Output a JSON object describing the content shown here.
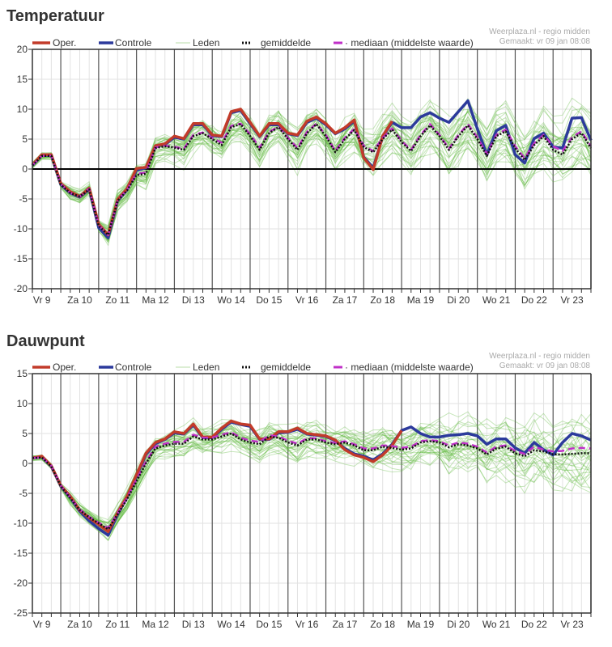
{
  "charts_meta": {
    "credit_line1": "Weerplaza.nl - regio midden",
    "credit_line2": "Gemaakt: vr 09 jan 08:08",
    "legend": {
      "oper": "Oper.",
      "controle": "Controle",
      "leden": "Leden",
      "gemiddelde": "gemiddelde",
      "mediaan": "mediaan (middelste waarde)"
    },
    "colors": {
      "oper": "#c23b2a",
      "controle": "#2c3a9c",
      "leden": "#5cb83a",
      "gemiddelde": "#111111",
      "mediaan": "#c030c8"
    }
  },
  "chart_data": [
    {
      "type": "line",
      "title": "Temperatuur",
      "xlabel": "",
      "ylabel": "",
      "ylim": [
        -20,
        20
      ],
      "yticks": [
        20,
        15,
        10,
        5,
        0,
        -5,
        -10,
        -15,
        -20
      ],
      "zero_line": true,
      "grid": true,
      "steps_per_day": 4,
      "day_labels": [
        "Vr 9",
        "Za 10",
        "Zo 11",
        "Ma 12",
        "Di 13",
        "Wo 14",
        "Do 15",
        "Vr 16",
        "Za 17",
        "Zo 18",
        "Ma 19",
        "Di 20",
        "Wo 21",
        "Do 22",
        "Vr 23"
      ],
      "series": [
        {
          "name": "Oper.",
          "key": "oper",
          "values": [
            0.7,
            2.4,
            2.4,
            -2.4,
            -3.8,
            -4.6,
            -3.2,
            -9.2,
            -11,
            -5.1,
            -3.3,
            0.1,
            0.3,
            3.9,
            4.2,
            5.5,
            5.1,
            7.6,
            7.6,
            5.7,
            5.5,
            9.6,
            10,
            7.8,
            5.5,
            7.6,
            7.6,
            6.0,
            5.7,
            8.0,
            8.7,
            7.6,
            6.0,
            6.9,
            8.2,
            1.9,
            -0.1,
            5.5,
            8.0
          ]
        },
        {
          "name": "Controle",
          "key": "controle",
          "values": [
            0.6,
            2.3,
            2.3,
            -2.6,
            -4.0,
            -4.7,
            -3.4,
            -9.8,
            -11.5,
            -5.3,
            -3.5,
            -0.2,
            0.2,
            3.8,
            4.1,
            5.3,
            5.0,
            7.4,
            7.4,
            5.6,
            5.4,
            9.4,
            9.8,
            7.6,
            5.4,
            7.4,
            7.4,
            5.9,
            5.6,
            7.8,
            8.5,
            7.4,
            5.9,
            6.7,
            8.0,
            2.0,
            0.2,
            5.4,
            7.8,
            6.9,
            6.9,
            8.7,
            9.4,
            8.5,
            7.8,
            9.6,
            11.4,
            6.7,
            2.4,
            6.4,
            7.3,
            2.4,
            1.0,
            5.1,
            6.0,
            3.7,
            3.5,
            8.5,
            8.6,
            4.8
          ]
        },
        {
          "name": "gemiddelde",
          "key": "gemiddelde",
          "values": [
            0.6,
            2.2,
            2.2,
            -2.6,
            -4.0,
            -4.6,
            -3.4,
            -9.5,
            -11,
            -5.3,
            -3.6,
            -1.0,
            -0.8,
            3.5,
            3.8,
            3.6,
            3.2,
            5.5,
            6.0,
            5.0,
            4.0,
            7.0,
            7.5,
            5.5,
            3.2,
            6.0,
            7.0,
            5.0,
            3.2,
            6.0,
            7.5,
            5.5,
            2.8,
            5.0,
            6.5,
            3.7,
            2.8,
            5.0,
            6.6,
            4.5,
            3.0,
            5.5,
            7.3,
            5.5,
            3.2,
            5.5,
            7.3,
            5.0,
            2.2,
            5.5,
            6.3,
            3.5,
            1.5,
            4.0,
            5.5,
            3.2,
            2.4,
            5.0,
            6.0,
            3.5
          ]
        },
        {
          "name": "mediaan (middelste waarde)",
          "key": "mediaan",
          "values": [
            0.6,
            2.2,
            2.2,
            -2.5,
            -4.0,
            -4.6,
            -3.3,
            -9.4,
            -11,
            -5.2,
            -3.5,
            -0.8,
            -0.6,
            3.6,
            3.9,
            3.7,
            3.4,
            5.7,
            6.1,
            5.2,
            4.4,
            7.2,
            7.6,
            5.8,
            3.6,
            6.2,
            7.1,
            5.2,
            3.5,
            6.2,
            7.6,
            5.7,
            3.0,
            5.2,
            6.7,
            3.9,
            3.0,
            5.2,
            6.8,
            4.7,
            3.2,
            5.7,
            7.5,
            5.7,
            3.4,
            5.7,
            7.5,
            5.3,
            2.5,
            5.7,
            6.6,
            3.8,
            1.8,
            4.3,
            5.7,
            3.8,
            3.0,
            5.3,
            6.3,
            3.8
          ]
        },
        {
          "name": "Leden",
          "key": "leden",
          "member_count": 50,
          "spread_per_day": [
            0.5,
            1.0,
            1.5,
            2.0,
            2.2,
            2.5,
            2.7,
            3.0,
            3.0,
            3.2,
            3.5,
            3.8,
            4.2,
            4.5,
            5.0
          ]
        }
      ]
    },
    {
      "type": "line",
      "title": "Dauwpunt",
      "xlabel": "",
      "ylabel": "",
      "ylim": [
        -25,
        15
      ],
      "yticks": [
        15,
        10,
        5,
        0,
        -5,
        -10,
        -15,
        -20,
        -25
      ],
      "zero_line": false,
      "grid": true,
      "steps_per_day": 4,
      "day_labels": [
        "Vr 9",
        "Za 10",
        "Zo 11",
        "Ma 12",
        "Di 13",
        "Wo 14",
        "Do 15",
        "Vr 16",
        "Za 17",
        "Zo 18",
        "Ma 19",
        "Di 20",
        "Wo 21",
        "Do 22",
        "Vr 23"
      ],
      "series": [
        {
          "name": "Oper.",
          "key": "oper",
          "values": [
            0.9,
            1.2,
            -0.4,
            -3.7,
            -5.5,
            -7.8,
            -9.1,
            -10.2,
            -11.4,
            -8.2,
            -5.5,
            -1.9,
            1.7,
            3.5,
            4.1,
            5.3,
            5.0,
            6.6,
            4.4,
            4.4,
            5.9,
            7.1,
            6.6,
            6.4,
            4.1,
            4.1,
            5.3,
            5.3,
            5.9,
            5.0,
            4.8,
            4.6,
            3.9,
            2.3,
            1.4,
            1.0,
            0.3,
            1.4,
            3.0,
            5.5
          ]
        },
        {
          "name": "Controle",
          "key": "controle",
          "values": [
            0.9,
            1.1,
            -0.5,
            -3.8,
            -5.7,
            -8.0,
            -9.6,
            -10.9,
            -12.0,
            -8.5,
            -5.7,
            -2.1,
            1.5,
            3.3,
            4.0,
            5.1,
            4.9,
            6.4,
            4.3,
            4.3,
            5.7,
            6.9,
            6.5,
            6.2,
            4.0,
            4.0,
            5.1,
            5.2,
            5.7,
            4.9,
            4.7,
            4.5,
            3.8,
            2.5,
            1.6,
            1.2,
            0.6,
            1.6,
            3.2,
            5.5,
            6.1,
            5.0,
            4.4,
            4.4,
            4.7,
            4.8,
            5.0,
            4.6,
            3.2,
            4.1,
            4.1,
            2.6,
            1.7,
            3.5,
            2.3,
            1.4,
            3.5,
            5.0,
            4.6,
            3.9
          ]
        },
        {
          "name": "gemiddelde",
          "key": "gemiddelde",
          "values": [
            0.9,
            1.0,
            -0.5,
            -3.8,
            -5.8,
            -7.8,
            -9.0,
            -10.0,
            -11.0,
            -8.5,
            -6.0,
            -3.0,
            0.0,
            2.5,
            3.0,
            3.3,
            3.3,
            4.5,
            4.0,
            4.0,
            4.5,
            5.0,
            4.0,
            3.5,
            3.2,
            4.5,
            4.3,
            3.5,
            3.0,
            4.0,
            4.0,
            3.5,
            3.2,
            3.5,
            3.0,
            2.2,
            2.2,
            2.8,
            2.6,
            2.3,
            2.5,
            3.5,
            3.7,
            3.5,
            2.7,
            3.2,
            3.0,
            2.5,
            1.5,
            2.5,
            2.8,
            1.7,
            1.2,
            2.2,
            2.0,
            1.5,
            1.5,
            1.6,
            1.7,
            1.7
          ]
        },
        {
          "name": "mediaan (middelste waarde)",
          "key": "mediaan",
          "values": [
            0.9,
            1.0,
            -0.4,
            -3.7,
            -5.7,
            -7.7,
            -8.9,
            -9.9,
            -10.8,
            -8.3,
            -5.8,
            -2.7,
            0.3,
            2.8,
            3.3,
            3.6,
            3.6,
            4.8,
            4.3,
            4.3,
            4.8,
            5.2,
            4.3,
            3.8,
            3.6,
            4.7,
            4.5,
            3.8,
            3.3,
            4.2,
            4.2,
            3.7,
            3.4,
            3.7,
            3.2,
            2.5,
            2.5,
            3.0,
            2.9,
            2.6,
            2.8,
            3.7,
            3.9,
            3.7,
            3.0,
            3.5,
            3.3,
            2.8,
            1.8,
            2.8,
            3.0,
            2.1,
            1.6,
            2.8,
            2.3,
            2.0,
            2.1,
            2.5,
            2.6,
            2.5
          ]
        },
        {
          "name": "Leden",
          "key": "leden",
          "member_count": 50,
          "spread_per_day": [
            0.4,
            1.0,
            1.5,
            1.8,
            2.0,
            2.2,
            2.3,
            2.5,
            2.7,
            3.0,
            3.2,
            3.8,
            4.5,
            5.0,
            5.5
          ]
        }
      ]
    }
  ]
}
